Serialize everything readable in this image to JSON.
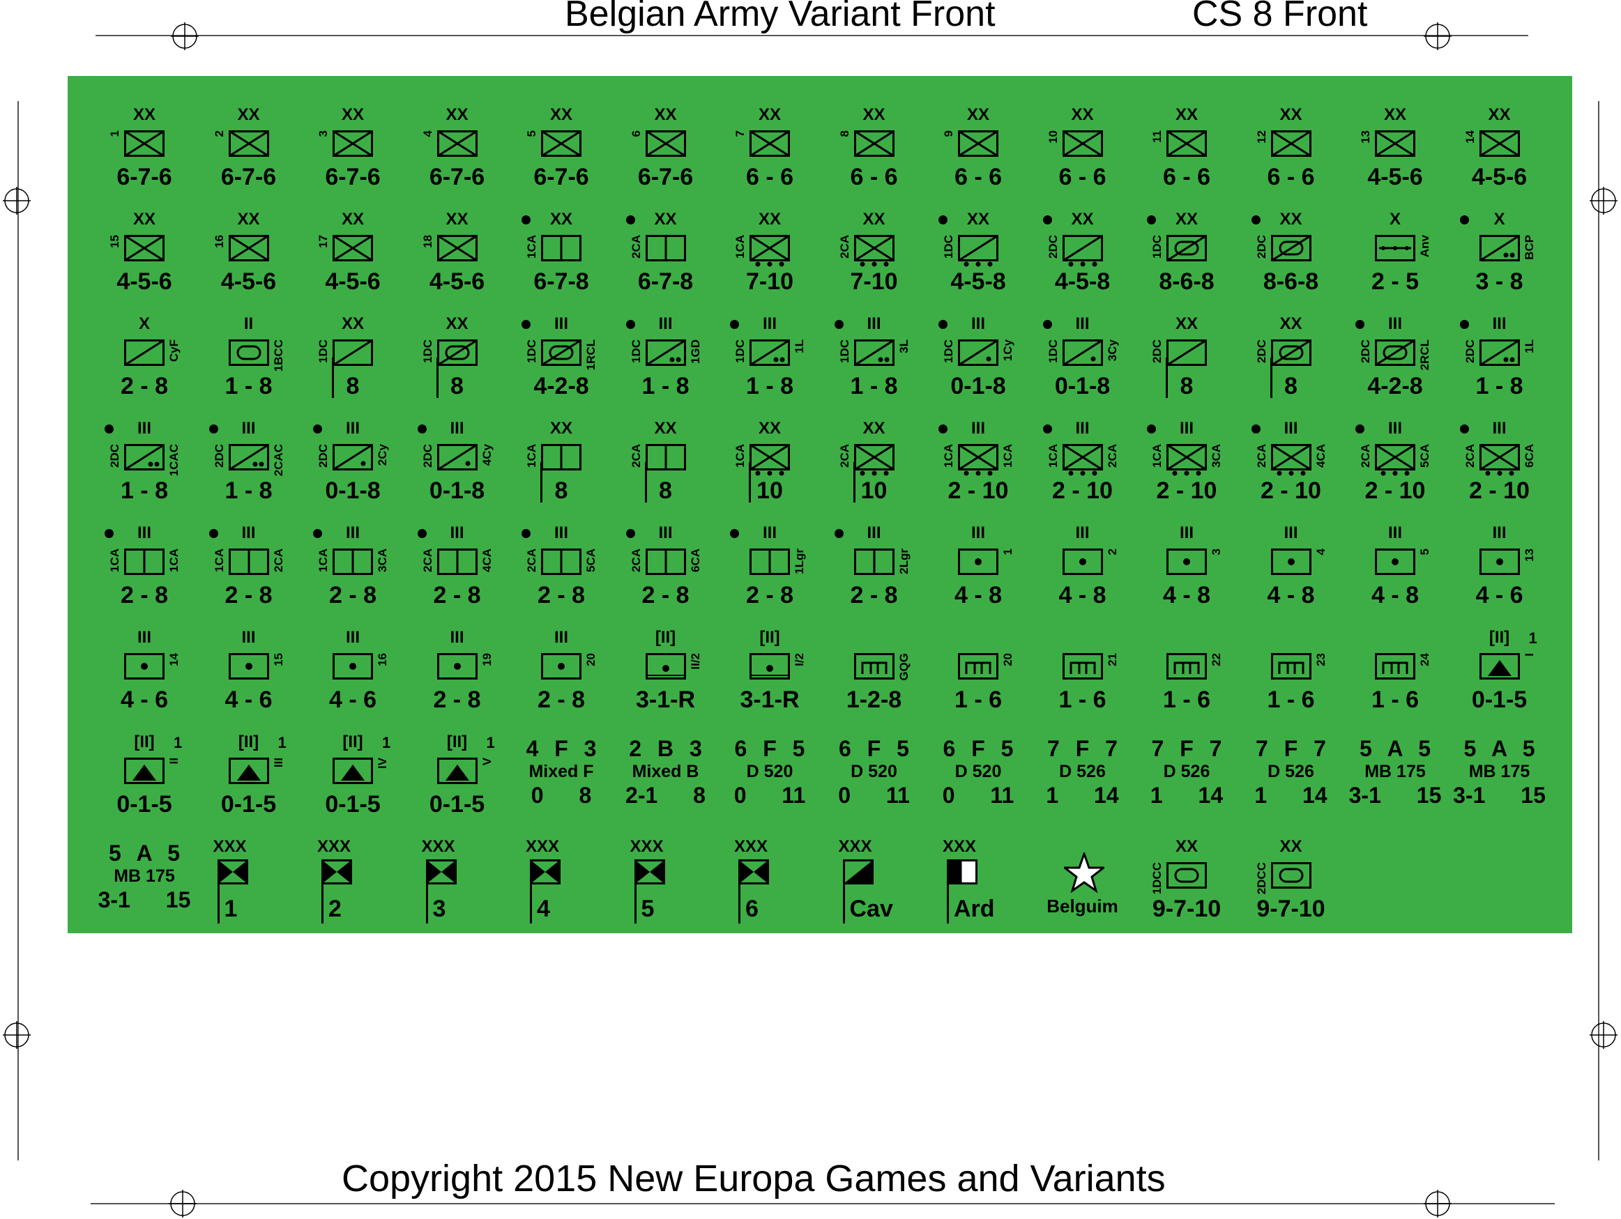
{
  "header": {
    "left_title": "Belgian Army Variant Front",
    "right_title": "CS 8 Front"
  },
  "footer": {
    "copyright": "Copyright 2015 New Europa Games and Variants"
  },
  "sheet_color": "#3dae45",
  "rows": [
    [
      {
        "kind": "unit",
        "size": "XX",
        "sym": "inf",
        "lab": "1",
        "str": "6-7-6"
      },
      {
        "kind": "unit",
        "size": "XX",
        "sym": "inf",
        "lab": "2",
        "str": "6-7-6"
      },
      {
        "kind": "unit",
        "size": "XX",
        "sym": "inf",
        "lab": "3",
        "str": "6-7-6"
      },
      {
        "kind": "unit",
        "size": "XX",
        "sym": "inf",
        "lab": "4",
        "str": "6-7-6"
      },
      {
        "kind": "unit",
        "size": "XX",
        "sym": "inf",
        "lab": "5",
        "str": "6-7-6"
      },
      {
        "kind": "unit",
        "size": "XX",
        "sym": "inf",
        "lab": "6",
        "str": "6-7-6"
      },
      {
        "kind": "unit",
        "size": "XX",
        "sym": "inf",
        "lab": "7",
        "str": "6 - 6"
      },
      {
        "kind": "unit",
        "size": "XX",
        "sym": "inf",
        "lab": "8",
        "str": "6 - 6"
      },
      {
        "kind": "unit",
        "size": "XX",
        "sym": "inf",
        "lab": "9",
        "str": "6 - 6"
      },
      {
        "kind": "unit",
        "size": "XX",
        "sym": "inf",
        "lab": "10",
        "str": "6 - 6"
      },
      {
        "kind": "unit",
        "size": "XX",
        "sym": "inf",
        "lab": "11",
        "str": "6 - 6"
      },
      {
        "kind": "unit",
        "size": "XX",
        "sym": "inf",
        "lab": "12",
        "str": "6 - 6"
      },
      {
        "kind": "unit",
        "size": "XX",
        "sym": "inf",
        "lab": "13",
        "str": "4-5-6"
      },
      {
        "kind": "unit",
        "size": "XX",
        "sym": "inf",
        "lab": "14",
        "str": "4-5-6"
      }
    ],
    [
      {
        "kind": "unit",
        "size": "XX",
        "sym": "inf",
        "lab": "15",
        "str": "4-5-6"
      },
      {
        "kind": "unit",
        "size": "XX",
        "sym": "inf",
        "lab": "16",
        "str": "4-5-6"
      },
      {
        "kind": "unit",
        "size": "XX",
        "sym": "inf",
        "lab": "17",
        "str": "4-5-6"
      },
      {
        "kind": "unit",
        "size": "XX",
        "sym": "inf",
        "lab": "18",
        "str": "4-5-6"
      },
      {
        "kind": "unit",
        "size": "XX",
        "sym": "split",
        "lab": "1CA",
        "dot": true,
        "str": "6-7-8"
      },
      {
        "kind": "unit",
        "size": "XX",
        "sym": "split",
        "lab": "2CA",
        "dot": true,
        "str": "6-7-8"
      },
      {
        "kind": "unit",
        "size": "XX",
        "sym": "infmot",
        "lab": "1CA",
        "str": "7-10"
      },
      {
        "kind": "unit",
        "size": "XX",
        "sym": "infmot",
        "lab": "2CA",
        "str": "7-10"
      },
      {
        "kind": "unit",
        "size": "XX",
        "sym": "cavmot",
        "lab": "1DC",
        "dot": true,
        "str": "4-5-8"
      },
      {
        "kind": "unit",
        "size": "XX",
        "sym": "cavmot",
        "lab": "2DC",
        "dot": true,
        "str": "4-5-8"
      },
      {
        "kind": "unit",
        "size": "XX",
        "sym": "armcav",
        "lab": "1DC",
        "dot": true,
        "str": "8-6-8"
      },
      {
        "kind": "unit",
        "size": "XX",
        "sym": "armcav",
        "lab": "2DC",
        "dot": true,
        "str": "8-6-8"
      },
      {
        "kind": "unit",
        "size": "X",
        "sym": "eng",
        "rlab": "Anv",
        "str": "2 - 5"
      },
      {
        "kind": "unit",
        "size": "X",
        "sym": "cavgun",
        "rlab": "BCP",
        "dot": true,
        "str": "3 - 8"
      }
    ],
    [
      {
        "kind": "unit",
        "size": "X",
        "sym": "cav",
        "rlab": "CyF",
        "str": "2 - 8"
      },
      {
        "kind": "unit",
        "size": "II",
        "sym": "arm",
        "rlab": "1BCC",
        "str": "1 - 8"
      },
      {
        "kind": "unit",
        "size": "XX",
        "sym": "cav",
        "lab": "1DC",
        "hq": true,
        "str": "8"
      },
      {
        "kind": "unit",
        "size": "XX",
        "sym": "armcav",
        "lab": "1DC",
        "hq": true,
        "str": "8"
      },
      {
        "kind": "unit",
        "size": "III",
        "sym": "armcav",
        "lab": "1DC",
        "rlab": "1RCL",
        "dot": true,
        "str": "4-2-8"
      },
      {
        "kind": "unit",
        "size": "III",
        "sym": "cavgun",
        "lab": "1DC",
        "rlab": "1GD",
        "dot": true,
        "str": "1 - 8"
      },
      {
        "kind": "unit",
        "size": "III",
        "sym": "cavgun",
        "lab": "1DC",
        "rlab": "1L",
        "dot": true,
        "str": "1 - 8"
      },
      {
        "kind": "unit",
        "size": "III",
        "sym": "cavgun",
        "lab": "1DC",
        "rlab": "3L",
        "dot": true,
        "str": "1 - 8"
      },
      {
        "kind": "unit",
        "size": "III",
        "sym": "cavcy",
        "lab": "1DC",
        "rlab": "1Cy",
        "dot": true,
        "str": "0-1-8"
      },
      {
        "kind": "unit",
        "size": "III",
        "sym": "cavcy",
        "lab": "1DC",
        "rlab": "3Cy",
        "dot": true,
        "str": "0-1-8"
      },
      {
        "kind": "unit",
        "size": "XX",
        "sym": "cav",
        "lab": "2DC",
        "hq": true,
        "str": "8"
      },
      {
        "kind": "unit",
        "size": "XX",
        "sym": "armcav",
        "lab": "2DC",
        "hq": true,
        "str": "8"
      },
      {
        "kind": "unit",
        "size": "III",
        "sym": "armcav",
        "lab": "2DC",
        "rlab": "2RCL",
        "dot": true,
        "str": "4-2-8"
      },
      {
        "kind": "unit",
        "size": "III",
        "sym": "cavgun",
        "lab": "2DC",
        "rlab": "1L",
        "dot": true,
        "str": "1 - 8"
      }
    ],
    [
      {
        "kind": "unit",
        "size": "III",
        "sym": "cavgun",
        "lab": "2DC",
        "rlab": "1CAC",
        "dot": true,
        "str": "1 - 8"
      },
      {
        "kind": "unit",
        "size": "III",
        "sym": "cavgun",
        "lab": "2DC",
        "rlab": "2CAC",
        "dot": true,
        "str": "1 - 8"
      },
      {
        "kind": "unit",
        "size": "III",
        "sym": "cavcy",
        "lab": "2DC",
        "rlab": "2Cy",
        "dot": true,
        "str": "0-1-8"
      },
      {
        "kind": "unit",
        "size": "III",
        "sym": "cavcy",
        "lab": "2DC",
        "rlab": "4Cy",
        "dot": true,
        "str": "0-1-8"
      },
      {
        "kind": "unit",
        "size": "XX",
        "sym": "split",
        "lab": "1CA",
        "hq": true,
        "str": "8"
      },
      {
        "kind": "unit",
        "size": "XX",
        "sym": "split",
        "lab": "2CA",
        "hq": true,
        "str": "8"
      },
      {
        "kind": "unit",
        "size": "XX",
        "sym": "infmot",
        "lab": "1CA",
        "hq": true,
        "str": "10"
      },
      {
        "kind": "unit",
        "size": "XX",
        "sym": "infmot",
        "lab": "2CA",
        "hq": true,
        "str": "10"
      },
      {
        "kind": "unit",
        "size": "III",
        "sym": "infmot",
        "lab": "1CA",
        "rlab": "1CA",
        "dot": true,
        "str": "2 - 10"
      },
      {
        "kind": "unit",
        "size": "III",
        "sym": "infmot",
        "lab": "1CA",
        "rlab": "2CA",
        "dot": true,
        "str": "2 - 10"
      },
      {
        "kind": "unit",
        "size": "III",
        "sym": "infmot",
        "lab": "1CA",
        "rlab": "3CA",
        "dot": true,
        "str": "2 - 10"
      },
      {
        "kind": "unit",
        "size": "III",
        "sym": "infmot",
        "lab": "2CA",
        "rlab": "4CA",
        "dot": true,
        "str": "2 - 10"
      },
      {
        "kind": "unit",
        "size": "III",
        "sym": "infmot",
        "lab": "2CA",
        "rlab": "5CA",
        "dot": true,
        "str": "2 - 10"
      },
      {
        "kind": "unit",
        "size": "III",
        "sym": "infmot",
        "lab": "2CA",
        "rlab": "6CA",
        "dot": true,
        "str": "2 - 10"
      }
    ],
    [
      {
        "kind": "unit",
        "size": "III",
        "sym": "split",
        "lab": "1CA",
        "rlab": "1CA",
        "dot": true,
        "str": "2 - 8"
      },
      {
        "kind": "unit",
        "size": "III",
        "sym": "split",
        "lab": "1CA",
        "rlab": "2CA",
        "dot": true,
        "str": "2 - 8"
      },
      {
        "kind": "unit",
        "size": "III",
        "sym": "split",
        "lab": "1CA",
        "rlab": "3CA",
        "dot": true,
        "str": "2 - 8"
      },
      {
        "kind": "unit",
        "size": "III",
        "sym": "split",
        "lab": "2CA",
        "rlab": "4CA",
        "dot": true,
        "str": "2 - 8"
      },
      {
        "kind": "unit",
        "size": "III",
        "sym": "split",
        "lab": "2CA",
        "rlab": "5CA",
        "dot": true,
        "str": "2 - 8"
      },
      {
        "kind": "unit",
        "size": "III",
        "sym": "split",
        "lab": "2CA",
        "rlab": "6CA",
        "dot": true,
        "str": "2 - 8"
      },
      {
        "kind": "unit",
        "size": "III",
        "sym": "split",
        "rlab": "1Lgr",
        "dot": true,
        "str": "2 - 8"
      },
      {
        "kind": "unit",
        "size": "III",
        "sym": "split",
        "rlab": "2Lgr",
        "dot": true,
        "str": "2 - 8"
      },
      {
        "kind": "unit",
        "size": "III",
        "sym": "art",
        "rlab": "1",
        "str": "4 - 8"
      },
      {
        "kind": "unit",
        "size": "III",
        "sym": "art",
        "rlab": "2",
        "str": "4 - 8"
      },
      {
        "kind": "unit",
        "size": "III",
        "sym": "art",
        "rlab": "3",
        "str": "4 - 8"
      },
      {
        "kind": "unit",
        "size": "III",
        "sym": "art",
        "rlab": "4",
        "str": "4 - 8"
      },
      {
        "kind": "unit",
        "size": "III",
        "sym": "art",
        "rlab": "5",
        "str": "4 - 8"
      },
      {
        "kind": "unit",
        "size": "III",
        "sym": "art",
        "rlab": "13",
        "str": "4 - 6"
      }
    ],
    [
      {
        "kind": "unit",
        "size": "III",
        "sym": "art",
        "rlab": "14",
        "str": "4 - 6"
      },
      {
        "kind": "unit",
        "size": "III",
        "sym": "art",
        "rlab": "15",
        "str": "4 - 6"
      },
      {
        "kind": "unit",
        "size": "III",
        "sym": "art",
        "rlab": "16",
        "str": "4 - 6"
      },
      {
        "kind": "unit",
        "size": "III",
        "sym": "art",
        "rlab": "19",
        "str": "2 - 8"
      },
      {
        "kind": "unit",
        "size": "III",
        "sym": "art",
        "rlab": "20",
        "str": "2 - 8"
      },
      {
        "kind": "unit",
        "size": "[II]",
        "sym": "railart",
        "rlab": "II/2",
        "str": "3-1-R"
      },
      {
        "kind": "unit",
        "size": "[II]",
        "sym": "railart",
        "rlab": "I/2",
        "str": "3-1-R"
      },
      {
        "kind": "unit",
        "size": "",
        "sym": "fort",
        "rlab": "GQG",
        "str": "1-2-8"
      },
      {
        "kind": "unit",
        "size": "",
        "sym": "fort",
        "rlab": "20",
        "str": "1 - 6"
      },
      {
        "kind": "unit",
        "size": "",
        "sym": "fort",
        "rlab": "21",
        "str": "1 - 6"
      },
      {
        "kind": "unit",
        "size": "",
        "sym": "fort",
        "rlab": "22",
        "str": "1 - 6"
      },
      {
        "kind": "unit",
        "size": "",
        "sym": "fort",
        "rlab": "23",
        "str": "1 - 6"
      },
      {
        "kind": "unit",
        "size": "",
        "sym": "fort",
        "rlab": "24",
        "str": "1 - 6"
      },
      {
        "kind": "unit",
        "size": "[II]",
        "sym": "aa",
        "num": "1",
        "rlab": "I",
        "str": "0-1-5"
      }
    ],
    [
      {
        "kind": "unit",
        "size": "[II]",
        "sym": "aa",
        "num": "1",
        "rlab": "II",
        "str": "0-1-5"
      },
      {
        "kind": "unit",
        "size": "[II]",
        "sym": "aa",
        "num": "1",
        "rlab": "III",
        "str": "0-1-5"
      },
      {
        "kind": "unit",
        "size": "[II]",
        "sym": "aa",
        "num": "1",
        "rlab": "IV",
        "str": "0-1-5"
      },
      {
        "kind": "unit",
        "size": "[II]",
        "sym": "aa",
        "num": "1",
        "rlab": "V",
        "str": "0-1-5"
      },
      {
        "kind": "ship",
        "r1": "4 F 3",
        "r2": "Mixed F",
        "r3": "0 8"
      },
      {
        "kind": "ship",
        "r1": "2 B 3",
        "r2": "Mixed B",
        "r3": "2-1 8"
      },
      {
        "kind": "ship",
        "r1": "6 F 5",
        "r2": "D 520",
        "r3": "0 11"
      },
      {
        "kind": "ship",
        "r1": "6 F 5",
        "r2": "D 520",
        "r3": "0 11"
      },
      {
        "kind": "ship",
        "r1": "6 F 5",
        "r2": "D 520",
        "r3": "0 11"
      },
      {
        "kind": "ship",
        "r1": "7 F 7",
        "r2": "D 526",
        "r3": "1 14"
      },
      {
        "kind": "ship",
        "r1": "7 F 7",
        "r2": "D 526",
        "r3": "1 14"
      },
      {
        "kind": "ship",
        "r1": "7 F 7",
        "r2": "D 526",
        "r3": "1 14"
      },
      {
        "kind": "ship",
        "r1": "5 A 5",
        "r2": "MB 175",
        "r3": "3-1 15"
      },
      {
        "kind": "ship",
        "r1": "5 A 5",
        "r2": "MB 175",
        "r3": "3-1 15"
      }
    ],
    [
      {
        "kind": "ship",
        "r1": "5 A 5",
        "r2": "MB 175",
        "r3": "3-1 15"
      },
      {
        "kind": "flag",
        "size": "XXX",
        "sym": "corps",
        "num": "1"
      },
      {
        "kind": "flag",
        "size": "XXX",
        "sym": "corps",
        "num": "2"
      },
      {
        "kind": "flag",
        "size": "XXX",
        "sym": "corps",
        "num": "3"
      },
      {
        "kind": "flag",
        "size": "XXX",
        "sym": "corps",
        "num": "4"
      },
      {
        "kind": "flag",
        "size": "XXX",
        "sym": "corps",
        "num": "5"
      },
      {
        "kind": "flag",
        "size": "XXX",
        "sym": "corps",
        "num": "6"
      },
      {
        "kind": "flag",
        "size": "XXX",
        "sym": "cavflag",
        "num": "Cav"
      },
      {
        "kind": "flag",
        "size": "XXX",
        "sym": "ardflag",
        "num": "Ard"
      },
      {
        "kind": "star",
        "label": "Belguim"
      },
      {
        "kind": "unit",
        "size": "XX",
        "sym": "arm",
        "lab": "1DCC",
        "str": "9-7-10"
      },
      {
        "kind": "unit",
        "size": "XX",
        "sym": "arm",
        "lab": "2DCC",
        "str": "9-7-10"
      }
    ]
  ]
}
